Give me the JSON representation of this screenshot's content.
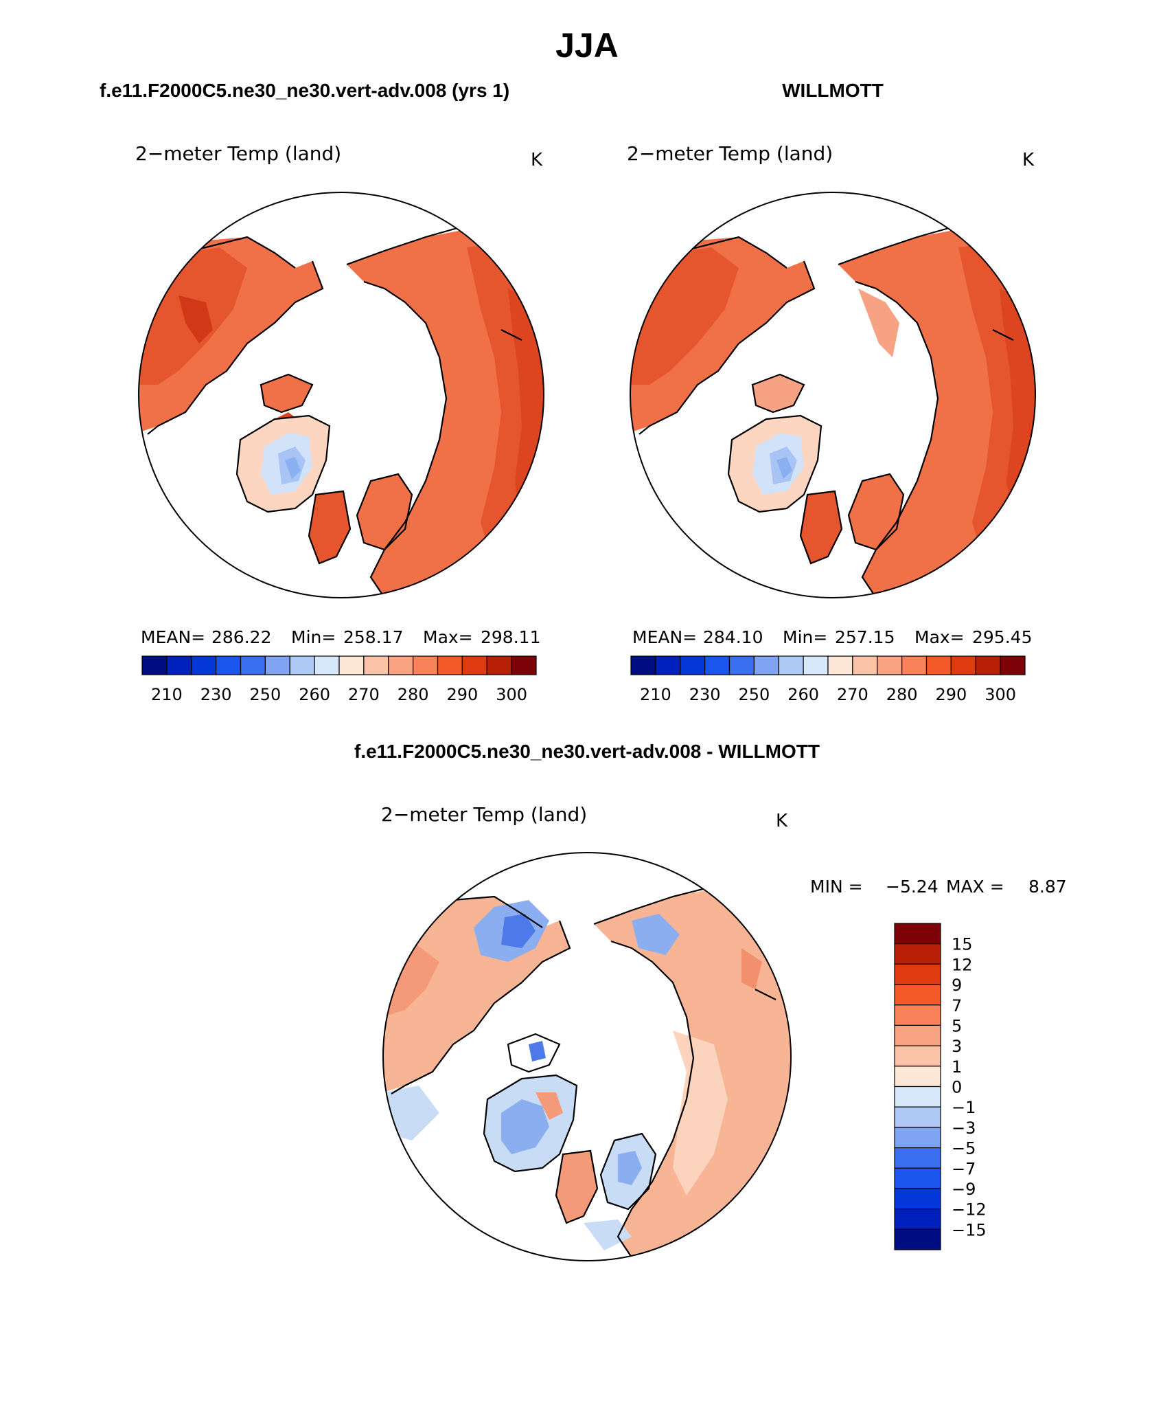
{
  "page": {
    "title": "JJA",
    "left_header": "f.e11.F2000C5.ne30_ne30.vert-adv.008 (yrs 1)",
    "right_header": "WILLMOTT",
    "diff_header": "f.e11.F2000C5.ne30_ne30.vert-adv.008 - WILLMOTT"
  },
  "colors": {
    "land_absolute": [
      "#f07048",
      "#e6562e",
      "#dd4420",
      "#d03818"
    ],
    "land_diff": [
      "#f7b596",
      "#fcd3bd",
      "#f59a78",
      "#f28f6c"
    ],
    "cold_diff": [
      "#c8dcf6",
      "#8aaef0",
      "#4d7ae8"
    ],
    "greenland_abs": [
      "#fdd6c2",
      "#d2e2f8",
      "#a8c4f4",
      "#8ab0f2"
    ],
    "ocean": "#ffffff",
    "coast": "#000000"
  },
  "chart_data": [
    {
      "type": "heatmap",
      "projection": "north-polar-stereographic",
      "title": "2−meter Temp (land)",
      "units": "K",
      "stats": {
        "mean_label": "MEAN=",
        "mean": "286.22",
        "min_label": "Min=",
        "min": "258.17",
        "max_label": "Max=",
        "max": "298.11"
      },
      "colorbar": {
        "orientation": "horizontal",
        "colors": [
          "#000e84",
          "#0020be",
          "#0437d8",
          "#1a55ee",
          "#3b6ff0",
          "#7fa4f2",
          "#afc9f6",
          "#d8e8fb",
          "#fde7d6",
          "#fbc3a8",
          "#f9a383",
          "#f98258",
          "#f45a28",
          "#e03a10",
          "#b71f06",
          "#7c0207"
        ],
        "tick_labels": [
          "210",
          "230",
          "250",
          "260",
          "270",
          "280",
          "290",
          "300"
        ]
      }
    },
    {
      "type": "heatmap",
      "projection": "north-polar-stereographic",
      "title": "2−meter Temp (land)",
      "units": "K",
      "stats": {
        "mean_label": "MEAN=",
        "mean": "284.10",
        "min_label": "Min=",
        "min": "257.15",
        "max_label": "Max=",
        "max": "295.45"
      },
      "colorbar": {
        "orientation": "horizontal",
        "colors": [
          "#000e84",
          "#0020be",
          "#0437d8",
          "#1a55ee",
          "#3b6ff0",
          "#7fa4f2",
          "#afc9f6",
          "#d8e8fb",
          "#fde7d6",
          "#fbc3a8",
          "#f9a383",
          "#f98258",
          "#f45a28",
          "#e03a10",
          "#b71f06",
          "#7c0207"
        ],
        "tick_labels": [
          "210",
          "230",
          "250",
          "260",
          "270",
          "280",
          "290",
          "300"
        ]
      }
    },
    {
      "type": "heatmap",
      "projection": "north-polar-stereographic",
      "title": "2−meter Temp (land)",
      "units": "K",
      "stats": {
        "min_label": "MIN =",
        "min": "−5.24",
        "max_label": "MAX =",
        "max": "8.87"
      },
      "colorbar": {
        "orientation": "vertical",
        "colors_top_to_bottom": [
          "#7c0207",
          "#b71f06",
          "#e03a10",
          "#f45a28",
          "#f98258",
          "#f9a383",
          "#fbc3a8",
          "#fde7d6",
          "#d8e8fb",
          "#afc9f6",
          "#7fa4f2",
          "#3b6ff0",
          "#1a55ee",
          "#0437d8",
          "#0020be",
          "#000e84"
        ],
        "tick_labels": [
          "15",
          "12",
          "9",
          "7",
          "5",
          "3",
          "1",
          "0",
          "−1",
          "−3",
          "−5",
          "−7",
          "−9",
          "−12",
          "−15"
        ]
      }
    }
  ]
}
